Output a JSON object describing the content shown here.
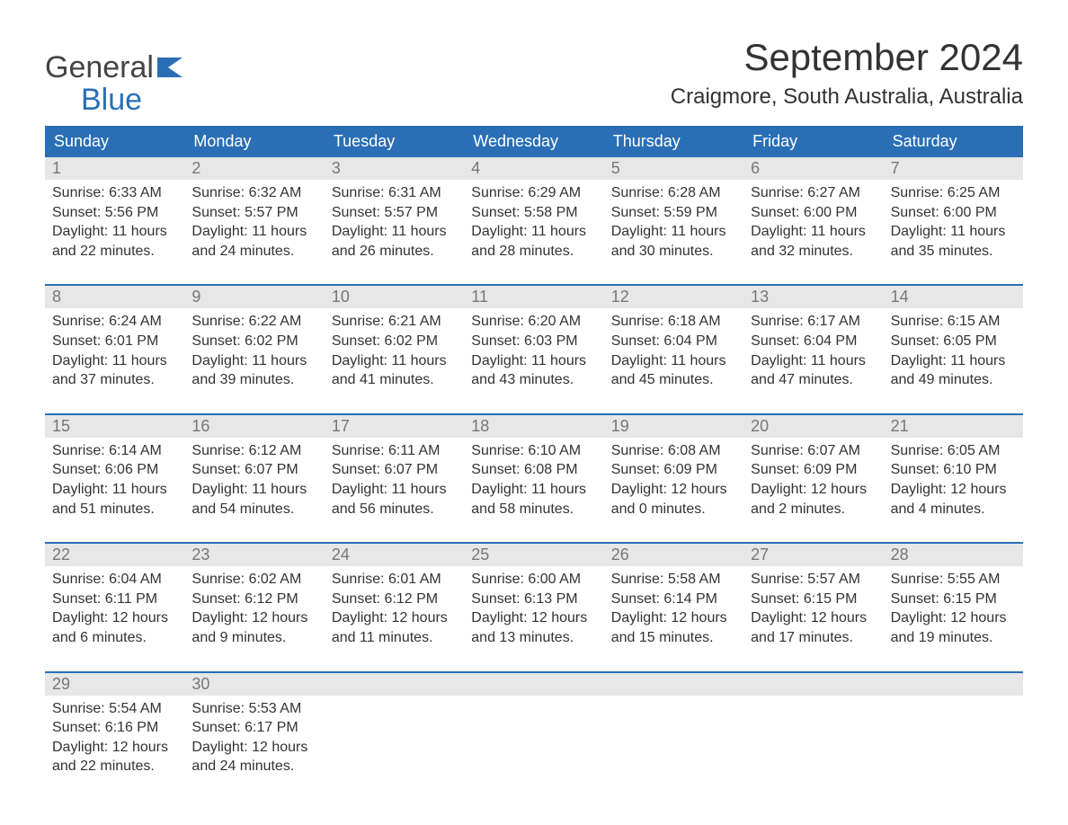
{
  "logo": {
    "line1": "General",
    "line2": "Blue",
    "iconColor": "#2a6fb5"
  },
  "title": "September 2024",
  "location": "Craigmore, South Australia, Australia",
  "colors": {
    "headerBg": "#2a6fb5",
    "headerText": "#ffffff",
    "dayNumBg": "#e7e7e7",
    "dayNumText": "#777777",
    "bodyText": "#333333",
    "accentBorder": "#2a6fb5",
    "background": "#ffffff"
  },
  "dow": [
    "Sunday",
    "Monday",
    "Tuesday",
    "Wednesday",
    "Thursday",
    "Friday",
    "Saturday"
  ],
  "labels": {
    "sunrise": "Sunrise:",
    "sunset": "Sunset:",
    "daylight": "Daylight:"
  },
  "weeks": [
    [
      {
        "n": "1",
        "sr": "6:33 AM",
        "ss": "5:56 PM",
        "dl": "11 hours and 22 minutes."
      },
      {
        "n": "2",
        "sr": "6:32 AM",
        "ss": "5:57 PM",
        "dl": "11 hours and 24 minutes."
      },
      {
        "n": "3",
        "sr": "6:31 AM",
        "ss": "5:57 PM",
        "dl": "11 hours and 26 minutes."
      },
      {
        "n": "4",
        "sr": "6:29 AM",
        "ss": "5:58 PM",
        "dl": "11 hours and 28 minutes."
      },
      {
        "n": "5",
        "sr": "6:28 AM",
        "ss": "5:59 PM",
        "dl": "11 hours and 30 minutes."
      },
      {
        "n": "6",
        "sr": "6:27 AM",
        "ss": "6:00 PM",
        "dl": "11 hours and 32 minutes."
      },
      {
        "n": "7",
        "sr": "6:25 AM",
        "ss": "6:00 PM",
        "dl": "11 hours and 35 minutes."
      }
    ],
    [
      {
        "n": "8",
        "sr": "6:24 AM",
        "ss": "6:01 PM",
        "dl": "11 hours and 37 minutes."
      },
      {
        "n": "9",
        "sr": "6:22 AM",
        "ss": "6:02 PM",
        "dl": "11 hours and 39 minutes."
      },
      {
        "n": "10",
        "sr": "6:21 AM",
        "ss": "6:02 PM",
        "dl": "11 hours and 41 minutes."
      },
      {
        "n": "11",
        "sr": "6:20 AM",
        "ss": "6:03 PM",
        "dl": "11 hours and 43 minutes."
      },
      {
        "n": "12",
        "sr": "6:18 AM",
        "ss": "6:04 PM",
        "dl": "11 hours and 45 minutes."
      },
      {
        "n": "13",
        "sr": "6:17 AM",
        "ss": "6:04 PM",
        "dl": "11 hours and 47 minutes."
      },
      {
        "n": "14",
        "sr": "6:15 AM",
        "ss": "6:05 PM",
        "dl": "11 hours and 49 minutes."
      }
    ],
    [
      {
        "n": "15",
        "sr": "6:14 AM",
        "ss": "6:06 PM",
        "dl": "11 hours and 51 minutes."
      },
      {
        "n": "16",
        "sr": "6:12 AM",
        "ss": "6:07 PM",
        "dl": "11 hours and 54 minutes."
      },
      {
        "n": "17",
        "sr": "6:11 AM",
        "ss": "6:07 PM",
        "dl": "11 hours and 56 minutes."
      },
      {
        "n": "18",
        "sr": "6:10 AM",
        "ss": "6:08 PM",
        "dl": "11 hours and 58 minutes."
      },
      {
        "n": "19",
        "sr": "6:08 AM",
        "ss": "6:09 PM",
        "dl": "12 hours and 0 minutes."
      },
      {
        "n": "20",
        "sr": "6:07 AM",
        "ss": "6:09 PM",
        "dl": "12 hours and 2 minutes."
      },
      {
        "n": "21",
        "sr": "6:05 AM",
        "ss": "6:10 PM",
        "dl": "12 hours and 4 minutes."
      }
    ],
    [
      {
        "n": "22",
        "sr": "6:04 AM",
        "ss": "6:11 PM",
        "dl": "12 hours and 6 minutes."
      },
      {
        "n": "23",
        "sr": "6:02 AM",
        "ss": "6:12 PM",
        "dl": "12 hours and 9 minutes."
      },
      {
        "n": "24",
        "sr": "6:01 AM",
        "ss": "6:12 PM",
        "dl": "12 hours and 11 minutes."
      },
      {
        "n": "25",
        "sr": "6:00 AM",
        "ss": "6:13 PM",
        "dl": "12 hours and 13 minutes."
      },
      {
        "n": "26",
        "sr": "5:58 AM",
        "ss": "6:14 PM",
        "dl": "12 hours and 15 minutes."
      },
      {
        "n": "27",
        "sr": "5:57 AM",
        "ss": "6:15 PM",
        "dl": "12 hours and 17 minutes."
      },
      {
        "n": "28",
        "sr": "5:55 AM",
        "ss": "6:15 PM",
        "dl": "12 hours and 19 minutes."
      }
    ],
    [
      {
        "n": "29",
        "sr": "5:54 AM",
        "ss": "6:16 PM",
        "dl": "12 hours and 22 minutes."
      },
      {
        "n": "30",
        "sr": "5:53 AM",
        "ss": "6:17 PM",
        "dl": "12 hours and 24 minutes."
      },
      null,
      null,
      null,
      null,
      null
    ]
  ]
}
